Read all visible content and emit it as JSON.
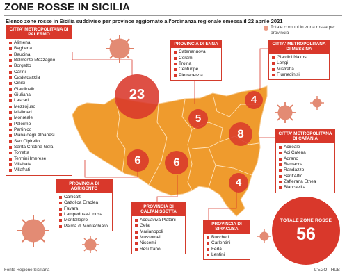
{
  "title": "ZONE ROSSE IN SICILIA",
  "subtitle": "Elenco zone rosse in Sicilia suddiviso per province aggiornato all'ordinanza regionale emessa il 22 aprile 2021",
  "legend": "Totale comuni in zona rossa per provincia",
  "colors": {
    "island": "#ef9b2d",
    "red": "#d9382b",
    "bubble": "#e06848",
    "virus": "#e07f66"
  },
  "icons": [
    "virus-icon"
  ],
  "provinces": {
    "palermo": {
      "header": "CITTA' METROPOLITANA DI PALERMO",
      "count": "23",
      "towns": [
        "Alimena",
        "Bagheria",
        "Baucina",
        "Belmonte Mezzagno",
        "Borgetto",
        "Carini",
        "Casteldaccia",
        "Cinisi",
        "Giardinello",
        "Giuliana",
        "Lascari",
        "Mezzojuso",
        "Misilmeri",
        "Monreale",
        "Palermo",
        "Partinico",
        "Piana degli Albanesi",
        "San Cipirello",
        "Santa Cristina Gela",
        "Torretta",
        "Termini Imerese",
        "Villabate",
        "Villafrati"
      ]
    },
    "enna": {
      "header": "PROVINCIA DI ENNA",
      "count": "5",
      "towns": [
        "Catenanuova",
        "Cerami",
        "Troina",
        "Centuripe",
        "Pietraperzia"
      ]
    },
    "messina": {
      "header": "CITTA' METROPOLITANA DI MESSINA",
      "count": "4",
      "towns": [
        "Giardini Naxos",
        "Longi",
        "Mistretta",
        "Fiumedinisi"
      ]
    },
    "catania": {
      "header": "CITTA' METROPOLITANA DI CATANIA",
      "count": "8",
      "towns": [
        "Acireale",
        "Aci Catena",
        "Adrano",
        "Ramacca",
        "Randazzo",
        "Sant'Alfio",
        "Zafferana Etnea",
        "Biancavilla"
      ]
    },
    "agrigento": {
      "header": "PROVINCIA DI AGRIGENTO",
      "count": "6",
      "towns": [
        "Canicatti",
        "Cattolica Eraclea",
        "Favara",
        "Lampedusa-Linosa",
        "Montallegro",
        "Palma di Montechiaro"
      ]
    },
    "caltanissetta": {
      "header": "PROVINCIA DI CALTANISSETTA",
      "count": "6",
      "towns": [
        "Acquaviva Platani",
        "Gela",
        "Marianopoli",
        "Mussomeli",
        "Niscemi",
        "Resuttano"
      ]
    },
    "siracusa": {
      "header": "PROVINCIA DI SIRACUSA",
      "count": "4",
      "towns": [
        "Buccheri",
        "Carlentini",
        "Ferla",
        "Lentini"
      ]
    }
  },
  "total": {
    "label": "TOTALE ZONE ROSSE",
    "value": "56"
  },
  "source": "Fonte Regione Siciliana",
  "credit": "L'EGO - HUB"
}
